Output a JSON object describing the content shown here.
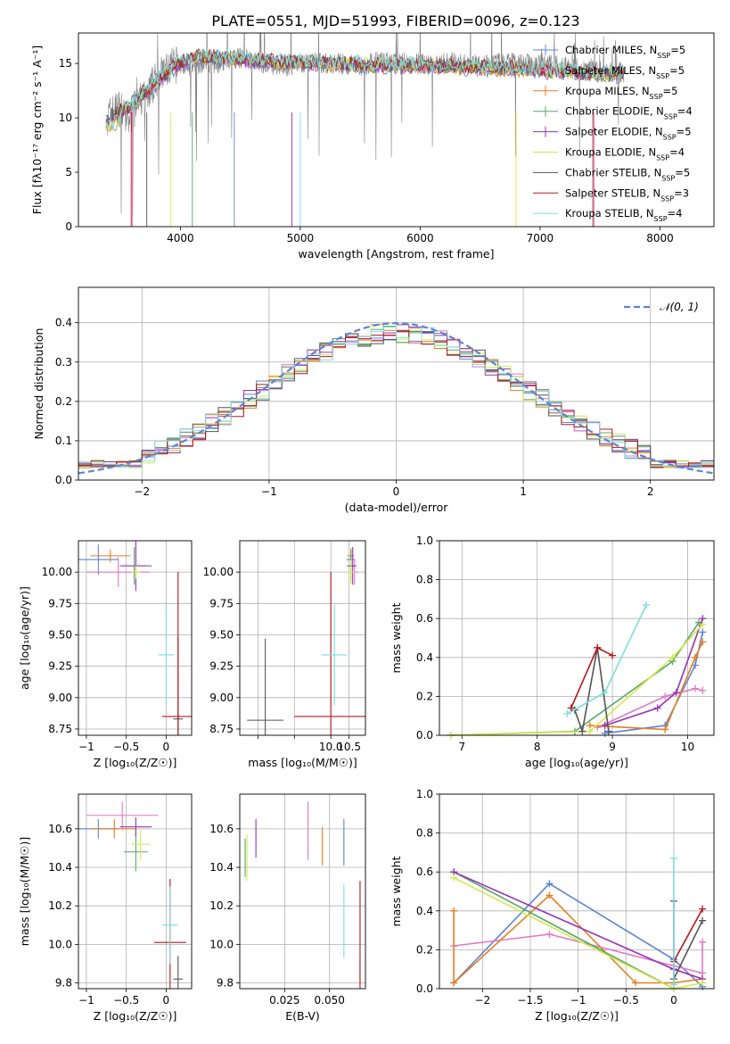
{
  "figure": {
    "title": "PLATE=0551, MJD=51993, FIBERID=0096, z=0.123",
    "series": [
      {
        "name": "Chabrier MILES",
        "nssp": "5",
        "color": "#5b84d6",
        "kind": "plus"
      },
      {
        "name": "Salpeter MILES",
        "nssp": "5",
        "color": "#e377c2",
        "kind": "plus"
      },
      {
        "name": "Kroupa MILES",
        "nssp": "5",
        "color": "#e87e1e",
        "kind": "plus"
      },
      {
        "name": "Chabrier ELODIE",
        "nssp": "4",
        "color": "#55a868",
        "kind": "plus"
      },
      {
        "name": "Salpeter ELODIE",
        "nssp": "5",
        "color": "#9632b8",
        "kind": "plus"
      },
      {
        "name": "Kroupa ELODIE",
        "nssp": "4",
        "color": "#d4e84a",
        "kind": "line"
      },
      {
        "name": "Chabrier STELIB",
        "nssp": "5",
        "color": "#555555",
        "kind": "line"
      },
      {
        "name": "Salpeter STELIB",
        "nssp": "3",
        "color": "#b2181b",
        "kind": "line"
      },
      {
        "name": "Kroupa STELIB",
        "nssp": "4",
        "color": "#7fdde0",
        "kind": "line"
      }
    ],
    "nssp_prefix": "N",
    "nssp_sub": "SSP",
    "nssp_eq": "="
  },
  "chart_data": [
    {
      "id": "spectrum",
      "type": "line",
      "xlabel": "wavelength [Angstrom, rest frame]",
      "ylabel": "Flux [f_λ 10^-17 erg cm^-2 s^-1 A^-1]",
      "xlim": [
        3150,
        8450
      ],
      "ylim": [
        0,
        17.8
      ],
      "xticks": [
        4000,
        5000,
        6000,
        7000,
        8000
      ],
      "yticks": [
        0,
        5,
        10,
        15
      ],
      "observed": {
        "color": "#808080",
        "x": [
          3400,
          3500,
          3550,
          3600,
          3700,
          3800,
          3900,
          4000,
          4100,
          4200,
          4300,
          4500,
          4700,
          4900,
          5100,
          5300,
          5500,
          5700,
          5900,
          6100,
          6300,
          6500,
          6700,
          6900,
          7100,
          7300,
          7500
        ],
        "y": [
          10.2,
          11.0,
          9.5,
          10.5,
          12.0,
          13.5,
          14.5,
          15.0,
          14.8,
          15.2,
          15.0,
          15.5,
          15.0,
          14.8,
          15.1,
          15.0,
          14.8,
          15.2,
          15.0,
          14.9,
          15.1,
          14.8,
          15.0,
          14.9,
          14.8,
          14.5,
          14.2
        ]
      },
      "model": {
        "x": [
          3380,
          3450,
          3550,
          3650,
          3750,
          3850,
          3950,
          4050,
          4150,
          4300,
          4500,
          4700,
          4900,
          5100,
          5300,
          5500,
          5700,
          5900,
          6100,
          6300,
          6500,
          6700,
          6900,
          7100,
          7300,
          7500
        ],
        "y": [
          10.0,
          10.6,
          10.8,
          11.8,
          12.8,
          13.8,
          14.6,
          15.3,
          15.6,
          15.5,
          15.4,
          15.2,
          15.1,
          15.0,
          14.9,
          14.9,
          14.8,
          14.8,
          14.8,
          14.7,
          14.6,
          14.5,
          14.4,
          14.3,
          14.2,
          14.0
        ]
      }
    },
    {
      "id": "residuals",
      "type": "area",
      "xlabel": "(data-model)/error",
      "ylabel": "Normed distribution",
      "xlim": [
        -2.5,
        2.5
      ],
      "ylim": [
        0,
        0.49
      ],
      "xticks": [
        -2,
        -1,
        0,
        1,
        2
      ],
      "yticks": [
        0.0,
        0.1,
        0.2,
        0.3,
        0.4
      ],
      "bin_width": 0.1,
      "bin_start": -2.5,
      "gaussian_label": "N(0, 1)",
      "gaussian_color": "#5b84d6"
    },
    {
      "id": "age-vs-Z",
      "type": "scatter",
      "xlabel": "Z [log10(Z/Z_sun)]",
      "ylabel": "age [log10(age/yr)]",
      "xlim": [
        -1.1,
        0.32
      ],
      "ylim": [
        8.7,
        10.25
      ],
      "xticks": [
        -1.0,
        -0.5,
        0.0
      ],
      "yticks": [
        8.75,
        9.0,
        9.25,
        9.5,
        9.75,
        10.0
      ],
      "points": [
        {
          "s": 0,
          "x": -0.85,
          "y": 10.1,
          "ex": 0.25,
          "ey": 0.12
        },
        {
          "s": 1,
          "x": -0.6,
          "y": 10.0,
          "ex": 0.4,
          "ey": 0.12
        },
        {
          "s": 2,
          "x": -0.7,
          "y": 10.13,
          "ex": 0.25,
          "ey": 0.05
        },
        {
          "s": 3,
          "x": -0.4,
          "y": 10.05,
          "ex": 0.15,
          "ey": 0.15
        },
        {
          "s": 4,
          "x": -0.38,
          "y": 10.05,
          "ex": 0.2,
          "ey": 0.2
        },
        {
          "s": 5,
          "x": -0.38,
          "y": 10.0,
          "ex": 0.05,
          "ey": 0.05
        },
        {
          "s": 6,
          "x": 0.15,
          "y": 8.83,
          "ex": 0.06,
          "ey": 0.65
        },
        {
          "s": 7,
          "x": 0.15,
          "y": 8.85,
          "ex": 0.2,
          "ey": 1.15
        },
        {
          "s": 8,
          "x": 0.0,
          "y": 9.34,
          "ex": 0.1,
          "ey": 0.4
        }
      ]
    },
    {
      "id": "age-vs-mass",
      "type": "scatter",
      "xlabel": "mass [log10(M/M_sun)]",
      "ylabel": "",
      "xlim": [
        7.5,
        10.95
      ],
      "ylim": [
        8.7,
        10.25
      ],
      "xticks": [
        8.0,
        9.0,
        10.0,
        10.5
      ],
      "xticklabels": [
        "",
        "",
        "10.0",
        "10.5"
      ],
      "yticks": [
        8.75,
        9.0,
        9.25,
        9.5,
        9.75,
        10.0
      ],
      "points": [
        {
          "s": 0,
          "x": 10.55,
          "y": 10.1,
          "ex": 0.12,
          "ey": 0.08
        },
        {
          "s": 1,
          "x": 10.65,
          "y": 10.0,
          "ex": 0.12,
          "ey": 0.1
        },
        {
          "s": 2,
          "x": 10.55,
          "y": 10.13,
          "ex": 0.1,
          "ey": 0.06
        },
        {
          "s": 3,
          "x": 10.55,
          "y": 10.05,
          "ex": 0.12,
          "ey": 0.12
        },
        {
          "s": 4,
          "x": 10.6,
          "y": 10.05,
          "ex": 0.1,
          "ey": 0.15
        },
        {
          "s": 5,
          "x": 10.55,
          "y": 10.0,
          "ex": 0.12,
          "ey": 0.1
        },
        {
          "s": 6,
          "x": 8.2,
          "y": 8.82,
          "ex": 0.5,
          "ey": 0.65
        },
        {
          "s": 7,
          "x": 10.0,
          "y": 8.85,
          "ex": 1.0,
          "ey": 1.15
        },
        {
          "s": 8,
          "x": 10.1,
          "y": 9.34,
          "ex": 0.35,
          "ey": 0.4
        }
      ]
    },
    {
      "id": "mass-weight-vs-age",
      "type": "line",
      "xlabel": "age [log10(age/yr)]",
      "ylabel": "mass weight",
      "xlim": [
        6.7,
        10.35
      ],
      "ylim": [
        0,
        1.0
      ],
      "xticks": [
        7,
        8,
        9,
        10
      ],
      "yticks": [
        0.0,
        0.2,
        0.4,
        0.6,
        0.8,
        1.0
      ],
      "series": [
        {
          "s": 0,
          "x": [
            8.9,
            9.7,
            10.1,
            10.2
          ],
          "y": [
            0.01,
            0.05,
            0.36,
            0.53
          ]
        },
        {
          "s": 1,
          "x": [
            8.8,
            9.7,
            10.1,
            10.2
          ],
          "y": [
            0.04,
            0.2,
            0.24,
            0.23
          ]
        },
        {
          "s": 2,
          "x": [
            8.7,
            9.7,
            10.1,
            10.2
          ],
          "y": [
            0.05,
            0.03,
            0.4,
            0.48
          ]
        },
        {
          "s": 3,
          "x": [
            6.85,
            8.5,
            9.8,
            10.15
          ],
          "y": [
            0.0,
            0.02,
            0.38,
            0.58
          ]
        },
        {
          "s": 4,
          "x": [
            8.9,
            9.6,
            9.85,
            10.2
          ],
          "y": [
            0.05,
            0.14,
            0.22,
            0.6
          ]
        },
        {
          "s": 5,
          "x": [
            6.85,
            8.7,
            9.8,
            10.2
          ],
          "y": [
            0.0,
            0.02,
            0.4,
            0.57
          ]
        },
        {
          "s": 6,
          "x": [
            8.5,
            8.6,
            8.8,
            8.95
          ],
          "y": [
            0.13,
            0.02,
            0.45,
            0.02
          ]
        },
        {
          "s": 7,
          "x": [
            8.45,
            8.8,
            9.0
          ],
          "y": [
            0.14,
            0.45,
            0.41
          ]
        },
        {
          "s": 8,
          "x": [
            8.4,
            8.9,
            9.45
          ],
          "y": [
            0.11,
            0.22,
            0.67
          ]
        }
      ]
    },
    {
      "id": "mass-vs-Z",
      "type": "scatter",
      "xlabel": "Z [log10(Z/Z_sun)]",
      "ylabel": "mass [log10(M/M_sun)]",
      "xlim": [
        -1.1,
        0.32
      ],
      "ylim": [
        9.77,
        10.78
      ],
      "xticks": [
        -1.0,
        -0.5,
        0.0
      ],
      "yticks": [
        9.8,
        10.0,
        10.2,
        10.4,
        10.6
      ],
      "points": [
        {
          "s": 0,
          "x": -0.85,
          "y": 10.6,
          "ex": 0.25,
          "ey": 0.05
        },
        {
          "s": 1,
          "x": -0.55,
          "y": 10.67,
          "ex": 0.45,
          "ey": 0.07
        },
        {
          "s": 2,
          "x": -0.65,
          "y": 10.6,
          "ex": 0.28,
          "ey": 0.05
        },
        {
          "s": 3,
          "x": -0.38,
          "y": 10.48,
          "ex": 0.15,
          "ey": 0.1
        },
        {
          "s": 4,
          "x": -0.38,
          "y": 10.61,
          "ex": 0.2,
          "ey": 0.05
        },
        {
          "s": 5,
          "x": -0.32,
          "y": 10.52,
          "ex": 0.12,
          "ey": 0.08
        },
        {
          "s": 6,
          "x": 0.15,
          "y": 9.82,
          "ex": 0.06,
          "ey": 0.12
        },
        {
          "s": 7,
          "x": 0.05,
          "y": 10.01,
          "ex": 0.2,
          "ey": 0.33
        },
        {
          "s": 8,
          "x": 0.05,
          "y": 10.1,
          "ex": 0.1,
          "ey": 0.2
        }
      ]
    },
    {
      "id": "mass-vs-EBV",
      "type": "scatter",
      "xlabel": "E(B-V)",
      "ylabel": "",
      "xlim": [
        -0.0,
        0.07
      ],
      "ylim": [
        9.77,
        10.78
      ],
      "xticks": [
        0.025,
        0.05
      ],
      "xticklabels": [
        "0.025",
        "0.050"
      ],
      "yticks": [
        9.8,
        10.0,
        10.2,
        10.4,
        10.6
      ],
      "points": [
        {
          "s": 0,
          "x": 0.058,
          "y": 10.53,
          "ex": 0.0,
          "ey": 0.12
        },
        {
          "s": 1,
          "x": 0.038,
          "y": 10.59,
          "ex": 0.0,
          "ey": 0.15
        },
        {
          "s": 2,
          "x": 0.046,
          "y": 10.51,
          "ex": 0.0,
          "ey": 0.1
        },
        {
          "s": 3,
          "x": 0.003,
          "y": 10.45,
          "ex": 0.0,
          "ey": 0.1
        },
        {
          "s": 4,
          "x": 0.009,
          "y": 10.55,
          "ex": 0.0,
          "ey": 0.1
        },
        {
          "s": 5,
          "x": 0.004,
          "y": 10.45,
          "ex": 0.0,
          "ey": 0.12
        },
        {
          "s": 6,
          "x": 0.067,
          "y": 9.87,
          "ex": 0.0,
          "ey": 0.05
        },
        {
          "s": 7,
          "x": 0.067,
          "y": 10.01,
          "ex": 0.0,
          "ey": 0.32
        },
        {
          "s": 8,
          "x": 0.058,
          "y": 10.12,
          "ex": 0.0,
          "ey": 0.19
        }
      ]
    },
    {
      "id": "mass-weight-vs-Z",
      "type": "line",
      "xlabel": "Z [log10(Z/Z_sun)]",
      "ylabel": "mass weight",
      "xlim": [
        -2.45,
        0.42
      ],
      "ylim": [
        0,
        1.0
      ],
      "xticks": [
        -2.0,
        -1.5,
        -1.0,
        -0.5,
        0.0
      ],
      "yticks": [
        0.0,
        0.2,
        0.4,
        0.6,
        0.8,
        1.0
      ],
      "series": [
        {
          "s": 0,
          "x": [
            -2.3,
            -1.3,
            0.0,
            0.3
          ],
          "y": [
            0.03,
            0.54,
            0.15,
            0.01
          ]
        },
        {
          "s": 1,
          "x": [
            -2.3,
            -1.3,
            0.3,
            0.3
          ],
          "y": [
            0.22,
            0.28,
            0.08,
            0.24
          ]
        },
        {
          "s": 2,
          "x": [
            -2.3,
            -2.3,
            -1.3,
            -0.4,
            0.0,
            0.3
          ],
          "y": [
            0.4,
            0.03,
            0.48,
            0.03,
            0.03,
            0.05
          ]
        },
        {
          "s": 3,
          "x": [
            -2.3,
            0.0
          ],
          "y": [
            0.6,
            0.0
          ]
        },
        {
          "s": 4,
          "x": [
            -2.3,
            0.0,
            0.3
          ],
          "y": [
            0.6,
            0.1,
            0.05
          ]
        },
        {
          "s": 5,
          "x": [
            -2.3,
            0.0,
            0.3
          ],
          "y": [
            0.57,
            0.0,
            0.03
          ]
        },
        {
          "s": 6,
          "x": [
            0.0,
            0.0,
            0.3
          ],
          "y": [
            0.45,
            0.05,
            0.35
          ]
        },
        {
          "s": 7,
          "x": [
            0.0,
            0.3
          ],
          "y": [
            0.14,
            0.41
          ]
        },
        {
          "s": 8,
          "x": [
            0.0,
            0.0
          ],
          "y": [
            0.67,
            0.02
          ]
        }
      ]
    }
  ]
}
